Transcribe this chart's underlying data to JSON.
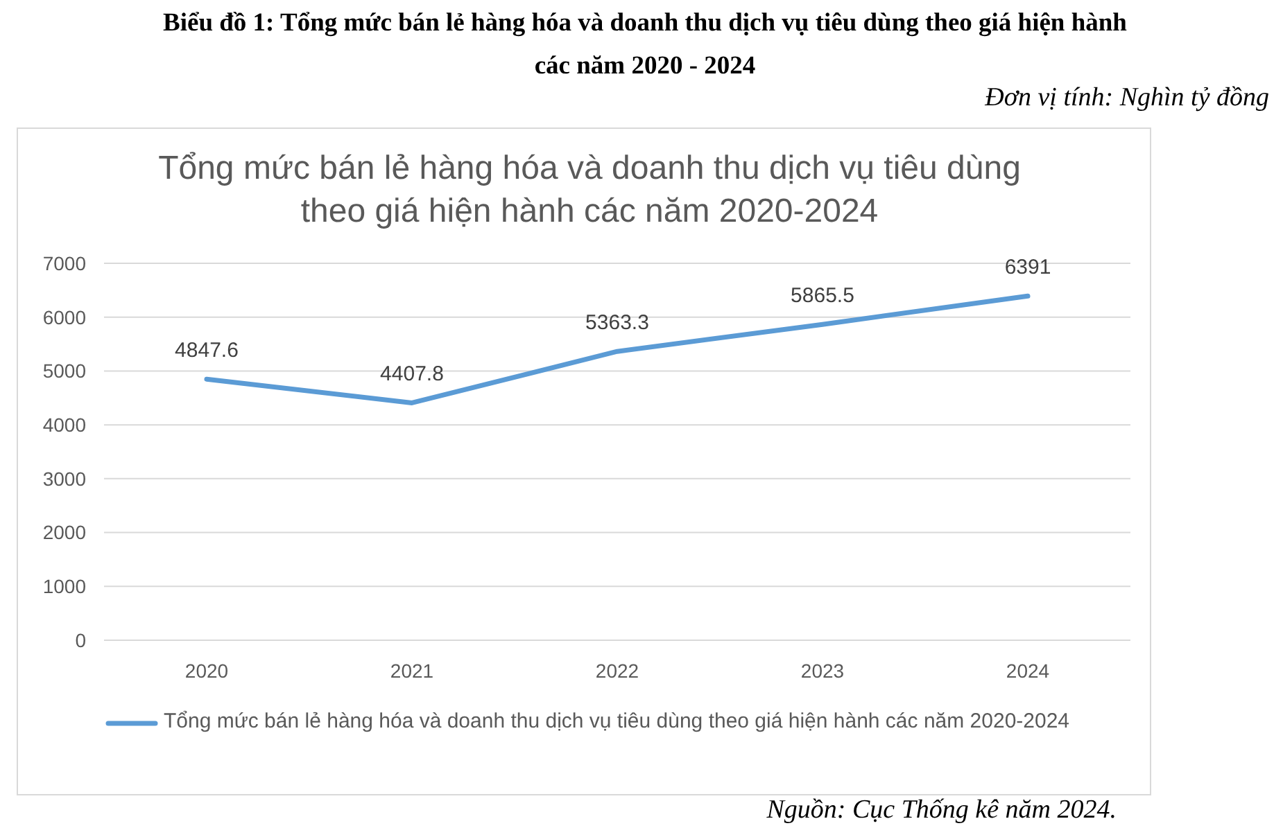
{
  "chart_data": {
    "type": "line",
    "title": "Biểu đồ 1: Tổng mức bán lẻ hàng hóa và doanh thu dịch vụ tiêu dùng theo giá hiện hành các năm 2020 - 2024",
    "subtitle": "Tổng mức bán lẻ hàng hóa và doanh thu dịch vụ tiêu dùng theo giá hiện hành các năm 2020-2024",
    "annotations": [
      "Đơn vị tính: Nghìn tỷ đồng",
      "Nguồn: Cục Thống kê năm 2024."
    ],
    "categories": [
      "2020",
      "2021",
      "2022",
      "2023",
      "2024"
    ],
    "series": [
      {
        "name": "Tổng mức bán lẻ hàng hóa và doanh thu dịch vụ tiêu dùng theo giá hiện hành các năm 2020-2024",
        "color": "#5b9bd5",
        "values": [
          4847.6,
          4407.8,
          5363.3,
          5865.5,
          6391
        ]
      }
    ],
    "ylim": [
      0,
      7000
    ],
    "yticks": [
      0,
      1000,
      2000,
      3000,
      4000,
      5000,
      6000,
      7000
    ],
    "grid": "y",
    "legend": "bottom",
    "data_labels": true,
    "marker": "none",
    "line_style": "solid"
  }
}
